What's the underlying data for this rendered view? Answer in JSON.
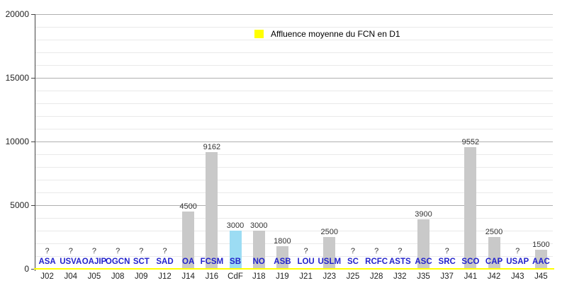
{
  "colors": {
    "bar_default": "#c9c9c9",
    "bar_highlight": "#9cdcf3",
    "baseline": "#ffff00",
    "legend_swatch": "#ffff00",
    "team_label": "#2222cc",
    "grid_major": "#b0b0b0",
    "grid_minor": "#e9e9e9",
    "axis": "#444444"
  },
  "chart_data": {
    "type": "bar",
    "title": "",
    "xlabel": "",
    "ylabel": "",
    "legend_label": "Affluence moyenne du FCN en D1",
    "legend_position": "top-center",
    "grid": true,
    "ylim": [
      0,
      20000
    ],
    "yticks": [
      0,
      5000,
      10000,
      15000,
      20000
    ],
    "ytick_minor_interval": 1000,
    "unknown_value_marker": "?",
    "x_axis_rows": [
      "team",
      "matchday"
    ],
    "columns": [
      {
        "matchday": "J02",
        "team": "ASA",
        "value": null,
        "label": "?",
        "highlight": false
      },
      {
        "matchday": "J04",
        "team": "USVA",
        "value": null,
        "label": "?",
        "highlight": false
      },
      {
        "matchday": "J05",
        "team": "OAJIP",
        "value": null,
        "label": "?",
        "highlight": false
      },
      {
        "matchday": "J08",
        "team": "OGCN",
        "value": null,
        "label": "?",
        "highlight": false
      },
      {
        "matchday": "J09",
        "team": "SCT",
        "value": null,
        "label": "?",
        "highlight": false
      },
      {
        "matchday": "J12",
        "team": "SAD",
        "value": null,
        "label": "?",
        "highlight": false
      },
      {
        "matchday": "J14",
        "team": "OA",
        "value": 4500,
        "label": "4500",
        "highlight": false
      },
      {
        "matchday": "J16",
        "team": "FCSM",
        "value": 9162,
        "label": "9162",
        "highlight": false
      },
      {
        "matchday": "CdF",
        "team": "SB",
        "value": 3000,
        "label": "3000",
        "highlight": true
      },
      {
        "matchday": "J18",
        "team": "NO",
        "value": 3000,
        "label": "3000",
        "highlight": false
      },
      {
        "matchday": "J19",
        "team": "ASB",
        "value": 1800,
        "label": "1800",
        "highlight": false
      },
      {
        "matchday": "J21",
        "team": "LOU",
        "value": null,
        "label": "?",
        "highlight": false
      },
      {
        "matchday": "J23",
        "team": "USLM",
        "value": 2500,
        "label": "2500",
        "highlight": false
      },
      {
        "matchday": "J25",
        "team": "SC",
        "value": null,
        "label": "?",
        "highlight": false
      },
      {
        "matchday": "J28",
        "team": "RCFC",
        "value": null,
        "label": "?",
        "highlight": false
      },
      {
        "matchday": "J32",
        "team": "ASTS",
        "value": null,
        "label": "?",
        "highlight": false
      },
      {
        "matchday": "J35",
        "team": "ASC",
        "value": 3900,
        "label": "3900",
        "highlight": false
      },
      {
        "matchday": "J37",
        "team": "SRC",
        "value": null,
        "label": "?",
        "highlight": false
      },
      {
        "matchday": "J41",
        "team": "SCO",
        "value": 9552,
        "label": "9552",
        "highlight": false
      },
      {
        "matchday": "J42",
        "team": "CAP",
        "value": 2500,
        "label": "2500",
        "highlight": false
      },
      {
        "matchday": "J43",
        "team": "USAP",
        "value": null,
        "label": "?",
        "highlight": false
      },
      {
        "matchday": "J45",
        "team": "AAC",
        "value": 1500,
        "label": "1500",
        "highlight": false
      }
    ]
  }
}
